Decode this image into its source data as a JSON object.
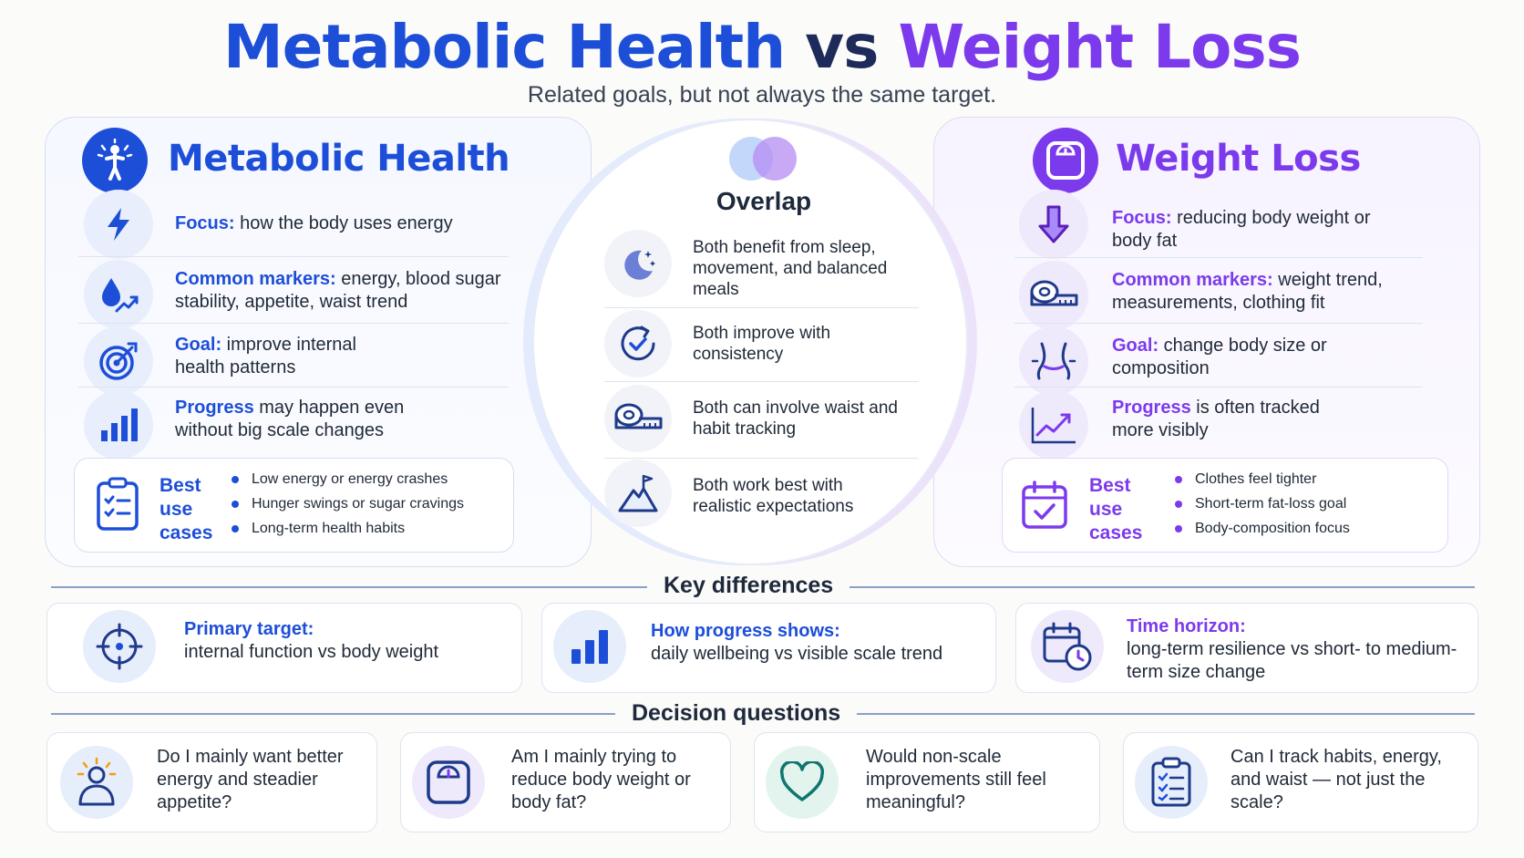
{
  "header": {
    "title_left": "Metabolic Health",
    "title_vs": "vs",
    "title_right": "Weight Loss",
    "subtitle": "Related goals, but not always the same target."
  },
  "colors": {
    "blue": "#1d4ed8",
    "purple": "#7c3aed",
    "teal": "#0f766e"
  },
  "metabolic": {
    "title": "Metabolic Health",
    "icon": "person-energy-icon",
    "rows": [
      {
        "icon": "lightning-icon",
        "key": "Focus:",
        "text": " how the body uses energy"
      },
      {
        "icon": "blood-drop-trend-icon",
        "key": "Common markers:",
        "text": " energy, blood sugar stability, appetite, waist trend"
      },
      {
        "icon": "target-icon",
        "key": "Goal:",
        "text": " improve internal health patterns"
      },
      {
        "icon": "bar-chart-icon",
        "key": "Progress",
        "text": " may happen even without big scale changes"
      }
    ],
    "best": {
      "label": "Best use cases",
      "icon": "clipboard-checklist-icon",
      "items": [
        "Low energy or energy crashes",
        "Hunger swings or sugar cravings",
        "Long-term health habits"
      ]
    }
  },
  "overlap": {
    "title": "Overlap",
    "icon": "venn-circles-icon",
    "items": [
      {
        "icon": "moon-stars-icon",
        "text": "Both benefit from sleep, movement, and balanced meals"
      },
      {
        "icon": "circular-check-icon",
        "text": "Both improve with consistency"
      },
      {
        "icon": "tape-measure-icon",
        "text": "Both can involve waist and habit tracking"
      },
      {
        "icon": "mountain-flag-icon",
        "text": "Both work best with realistic expectations"
      }
    ]
  },
  "weight": {
    "title": "Weight Loss",
    "icon": "scale-icon",
    "rows": [
      {
        "icon": "arrow-down-icon",
        "key": "Focus:",
        "text": " reducing body weight or body fat"
      },
      {
        "icon": "tape-measure-icon",
        "key": "Common markers:",
        "text": " weight trend, measurements, clothing fit"
      },
      {
        "icon": "waist-icon",
        "key": "Goal:",
        "text": " change body size or composition"
      },
      {
        "icon": "line-chart-icon",
        "key": "Progress",
        "text": " is often tracked more visibly"
      }
    ],
    "best": {
      "label": "Best use cases",
      "icon": "calendar-check-icon",
      "items": [
        "Clothes feel tighter",
        "Short-term fat-loss goal",
        "Body-composition focus"
      ]
    }
  },
  "key_differences": {
    "title": "Key differences",
    "cards": [
      {
        "icon": "crosshair-icon",
        "key": "Primary target:",
        "text": "internal function vs body weight"
      },
      {
        "icon": "bar-chart-icon",
        "key": "How progress shows:",
        "text": "daily wellbeing vs visible scale trend"
      },
      {
        "icon": "calendar-clock-icon",
        "key": "Time horizon:",
        "text": "long-term resilience vs short- to medium-term size change"
      }
    ]
  },
  "decision_questions": {
    "title": "Decision questions",
    "items": [
      {
        "icon": "person-sun-icon",
        "text": "Do I mainly want better energy and steadier appetite?"
      },
      {
        "icon": "scale-icon",
        "text": "Am I mainly trying to reduce body weight or body fat?"
      },
      {
        "icon": "heart-icon",
        "text": "Would non-scale improvements still feel meaningful?"
      },
      {
        "icon": "clipboard-checklist-icon",
        "text": "Can I track habits, energy, and waist — not just the scale?"
      }
    ]
  }
}
